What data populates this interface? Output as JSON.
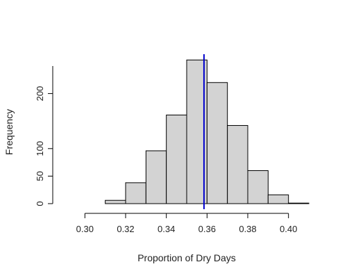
{
  "chart_data": {
    "type": "bar",
    "title": "",
    "xlabel": "Proportion of Dry Days",
    "ylabel": "Frequency",
    "bins": [
      {
        "start": 0.29,
        "end": 0.3,
        "count": 0
      },
      {
        "start": 0.3,
        "end": 0.31,
        "count": 0
      },
      {
        "start": 0.31,
        "end": 0.32,
        "count": 6
      },
      {
        "start": 0.32,
        "end": 0.33,
        "count": 38
      },
      {
        "start": 0.33,
        "end": 0.34,
        "count": 96
      },
      {
        "start": 0.34,
        "end": 0.35,
        "count": 161
      },
      {
        "start": 0.35,
        "end": 0.36,
        "count": 261
      },
      {
        "start": 0.36,
        "end": 0.37,
        "count": 220
      },
      {
        "start": 0.37,
        "end": 0.38,
        "count": 142
      },
      {
        "start": 0.38,
        "end": 0.39,
        "count": 60
      },
      {
        "start": 0.39,
        "end": 0.4,
        "count": 16
      },
      {
        "start": 0.4,
        "end": 0.41,
        "count": 1
      }
    ],
    "xlim": [
      0.29,
      0.41
    ],
    "ylim": [
      0,
      250
    ],
    "x_ticks": [
      0.3,
      0.32,
      0.34,
      0.36,
      0.38,
      0.4
    ],
    "x_tick_labels": [
      "0.30",
      "0.32",
      "0.34",
      "0.36",
      "0.38",
      "0.40"
    ],
    "y_ticks": [
      0,
      50,
      100,
      200
    ],
    "y_tick_labels": [
      "0",
      "50",
      "100",
      "200"
    ],
    "reference_line": {
      "x": 0.3585,
      "color": "#0000cc"
    },
    "bar_fill": "#d3d3d3",
    "bar_stroke": "#000000",
    "grid": false,
    "legend": "none"
  }
}
